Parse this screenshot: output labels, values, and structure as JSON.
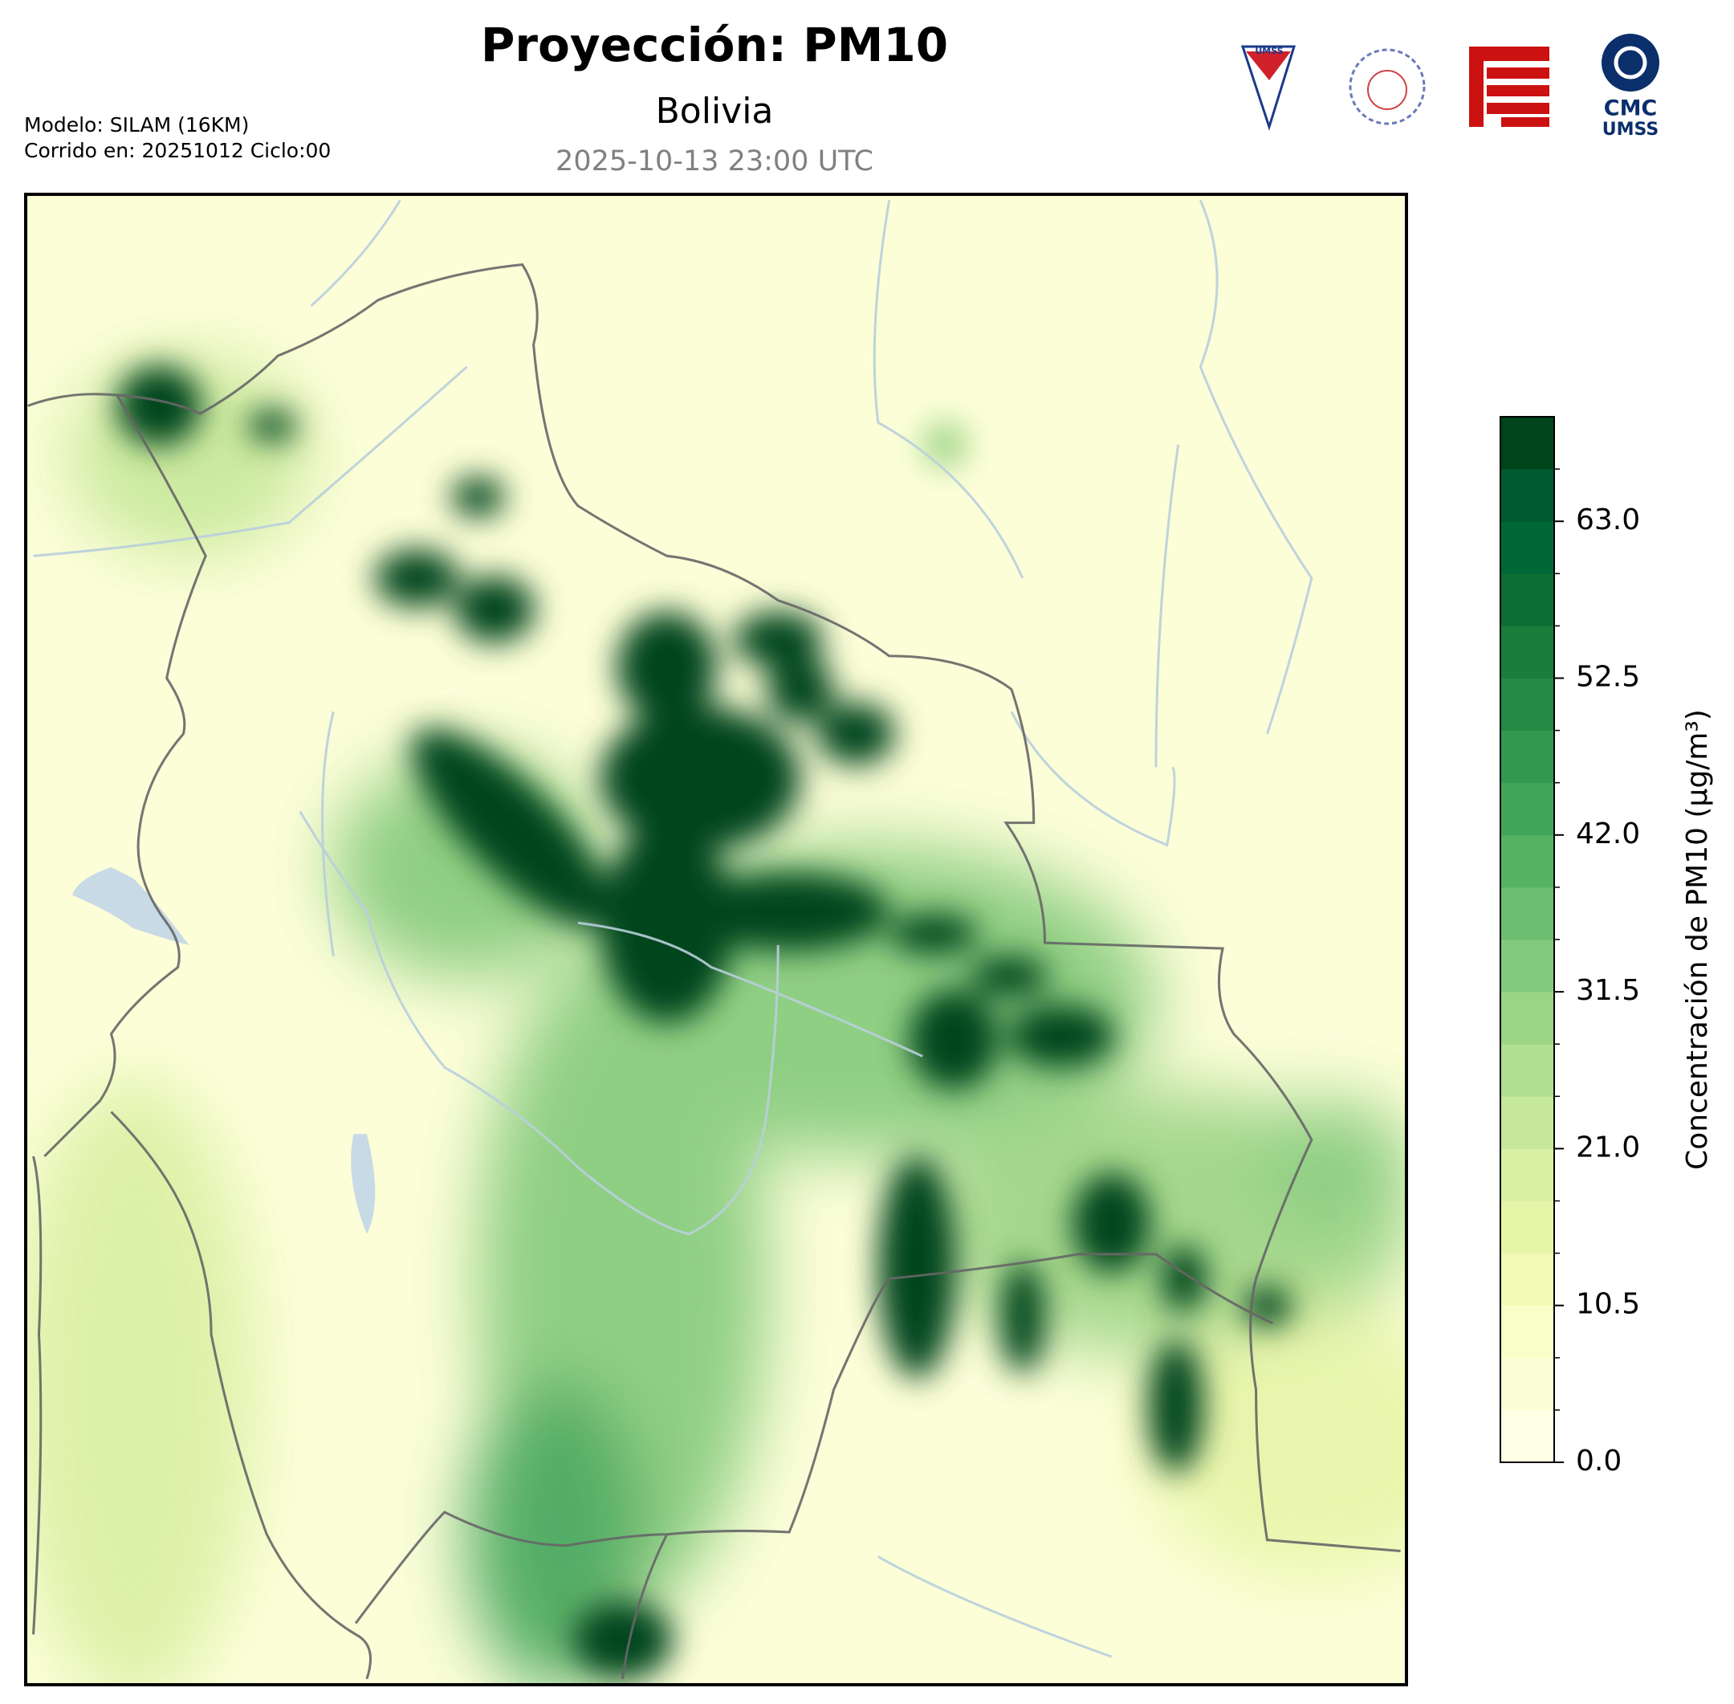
{
  "header": {
    "title": "Proyección: PM10",
    "subtitle": "Bolivia",
    "date": "2025-10-13 23:00 UTC",
    "model": "Modelo: SILAM (16KM)",
    "run": "Corrido en: 20251012 Ciclo:00"
  },
  "logos": {
    "umss": "UMSS",
    "cmc": "CMC",
    "cmc_sub": "UMSS"
  },
  "chart_data": {
    "type": "colorbar",
    "label": "Concentración de PM10 (µg/m³)",
    "lim": [
      0,
      70
    ],
    "ticks": [
      {
        "value": 0,
        "label": "0.0"
      },
      {
        "value": 10.5,
        "label": "10.5"
      },
      {
        "value": 21,
        "label": "21.0"
      },
      {
        "value": 31.5,
        "label": "31.5"
      },
      {
        "value": 42,
        "label": "42.0"
      },
      {
        "value": 52.5,
        "label": "52.5"
      },
      {
        "value": 63,
        "label": "63.0"
      }
    ],
    "colors": [
      "#ffffe5",
      "#fcfed6",
      "#f9fdc8",
      "#f3fab6",
      "#e7f5a8",
      "#d9f0a3",
      "#c6e89a",
      "#b1df90",
      "#9cd486",
      "#84ca7c",
      "#6cbe70",
      "#56b263",
      "#42a55a",
      "#33984f",
      "#238b45",
      "#1a7d3c",
      "#0f6e34",
      "#006837",
      "#005a30",
      "#00441b"
    ]
  }
}
